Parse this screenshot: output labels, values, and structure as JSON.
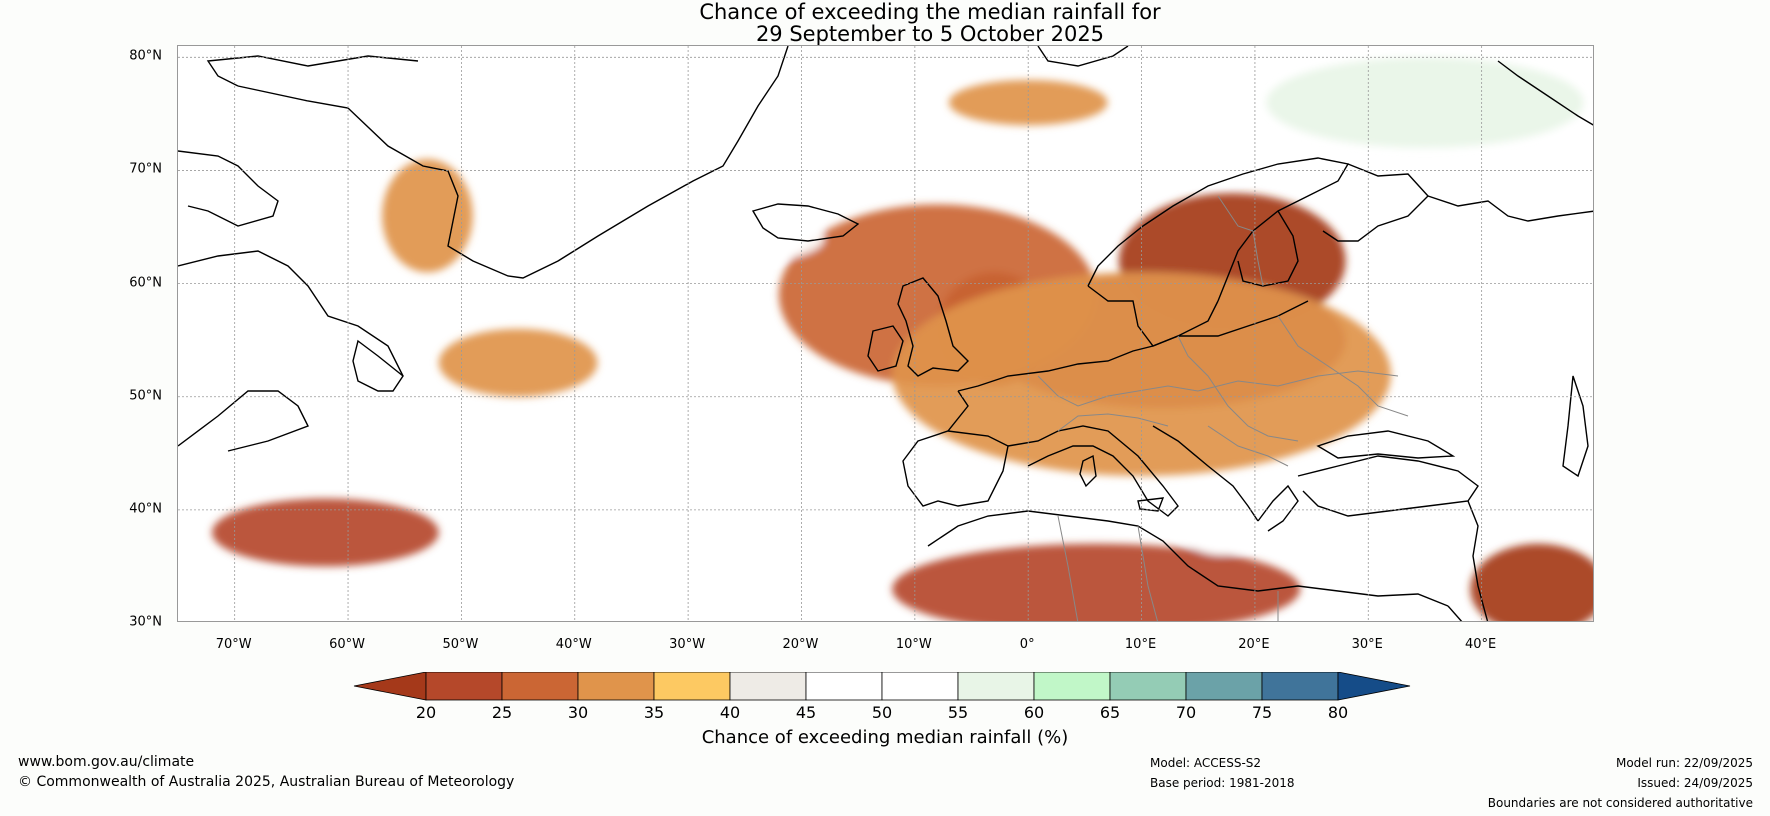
{
  "title": {
    "line1": "Chance of exceeding the median rainfall for",
    "line2": "29 September to 5 October 2025"
  },
  "map": {
    "lat_labels": [
      "80°N",
      "70°N",
      "60°N",
      "50°N",
      "40°N",
      "30°N"
    ],
    "lat_values": [
      80,
      70,
      60,
      50,
      40,
      30
    ],
    "lon_labels": [
      "70°W",
      "60°W",
      "50°W",
      "40°W",
      "30°W",
      "20°W",
      "10°W",
      "0°",
      "10°E",
      "20°E",
      "30°E",
      "40°E"
    ],
    "lon_values": [
      -70,
      -60,
      -50,
      -40,
      -30,
      -20,
      -10,
      0,
      10,
      20,
      30,
      40
    ],
    "lon_range": [
      -75,
      50
    ],
    "lat_range": [
      30,
      81
    ],
    "regions": [
      {
        "name": "scandinavia-europe-dry",
        "category": 0,
        "lon": 18,
        "lat": 62,
        "rlon": 10,
        "rlat": 6
      },
      {
        "name": "uk-dry",
        "category": 0,
        "lon": -3,
        "lat": 56,
        "rlon": 5,
        "rlat": 5
      },
      {
        "name": "central-europe-dry",
        "category": 1,
        "lon": 12,
        "lat": 55,
        "rlon": 16,
        "rlat": 6
      },
      {
        "name": "north-atlantic-dry",
        "category": 2,
        "lon": -8,
        "lat": 59,
        "rlon": 14,
        "rlat": 8
      },
      {
        "name": "west-europe-belt",
        "category": 3,
        "lon": 10,
        "lat": 52,
        "rlon": 22,
        "rlat": 9
      },
      {
        "name": "north-africa-dry",
        "category": 1,
        "lon": 6,
        "lat": 33,
        "rlon": 18,
        "rlat": 4
      },
      {
        "name": "east-med-dry",
        "category": 0,
        "lon": 45,
        "lat": 33,
        "rlon": 6,
        "rlat": 4
      },
      {
        "name": "sargasso-dry",
        "category": 1,
        "lon": -62,
        "lat": 38,
        "rlon": 10,
        "rlat": 3
      },
      {
        "name": "north-atlantic-patch",
        "category": 3,
        "lon": -45,
        "lat": 53,
        "rlon": 7,
        "rlat": 3
      },
      {
        "name": "greenland-west-strip",
        "category": 3,
        "lon": -53,
        "lat": 66,
        "rlon": 4,
        "rlat": 5
      },
      {
        "name": "svalbard-dry",
        "category": 3,
        "lon": 0,
        "lat": 76,
        "rlon": 7,
        "rlat": 2
      },
      {
        "name": "barents-wet",
        "category": 8,
        "lon": 35,
        "lat": 76,
        "rlon": 14,
        "rlat": 4
      },
      {
        "name": "norway-coast-wet",
        "category": 7,
        "lon": 15,
        "lat": 71,
        "rlon": 8,
        "rlat": 2
      },
      {
        "name": "italy-wet",
        "category": 6,
        "lon": 17,
        "lat": 39,
        "rlon": 4,
        "rlat": 3
      },
      {
        "name": "labrador-wet",
        "category": 6,
        "lon": -72,
        "lat": 67,
        "rlon": 4,
        "rlat": 5
      },
      {
        "name": "atlantic-wet-south",
        "category": 6,
        "lon": -45,
        "lat": 32,
        "rlon": 14,
        "rlat": 3
      },
      {
        "name": "iceland-wet",
        "category": 6,
        "lon": -24,
        "lat": 64,
        "rlon": 6,
        "rlat": 2
      }
    ]
  },
  "colorbar": {
    "colors": [
      "#a5391a",
      "#b5482a",
      "#cb6634",
      "#e0944b",
      "#fdc962",
      "#eeebe6",
      "#ffffff",
      "#ffffff",
      "#e8f5e7",
      "#c1f7c8",
      "#94ccb5",
      "#6ba2a8",
      "#40749a",
      "#154c88"
    ],
    "ticks": [
      "20",
      "25",
      "30",
      "35",
      "40",
      "45",
      "50",
      "55",
      "60",
      "65",
      "70",
      "75",
      "80"
    ],
    "label": "Chance of exceeding median rainfall (%)"
  },
  "footer": {
    "website": "www.bom.gov.au/climate",
    "copyright": "© Commonwealth of Australia 2025, Australian Bureau of Meteorology",
    "model": "Model: ACCESS-S2",
    "base_period": "Base period: 1981-2018",
    "model_run": "Model run: 22/09/2025",
    "issued": "Issued: 24/09/2025",
    "disclaimer": "Boundaries are not considered authoritative"
  }
}
